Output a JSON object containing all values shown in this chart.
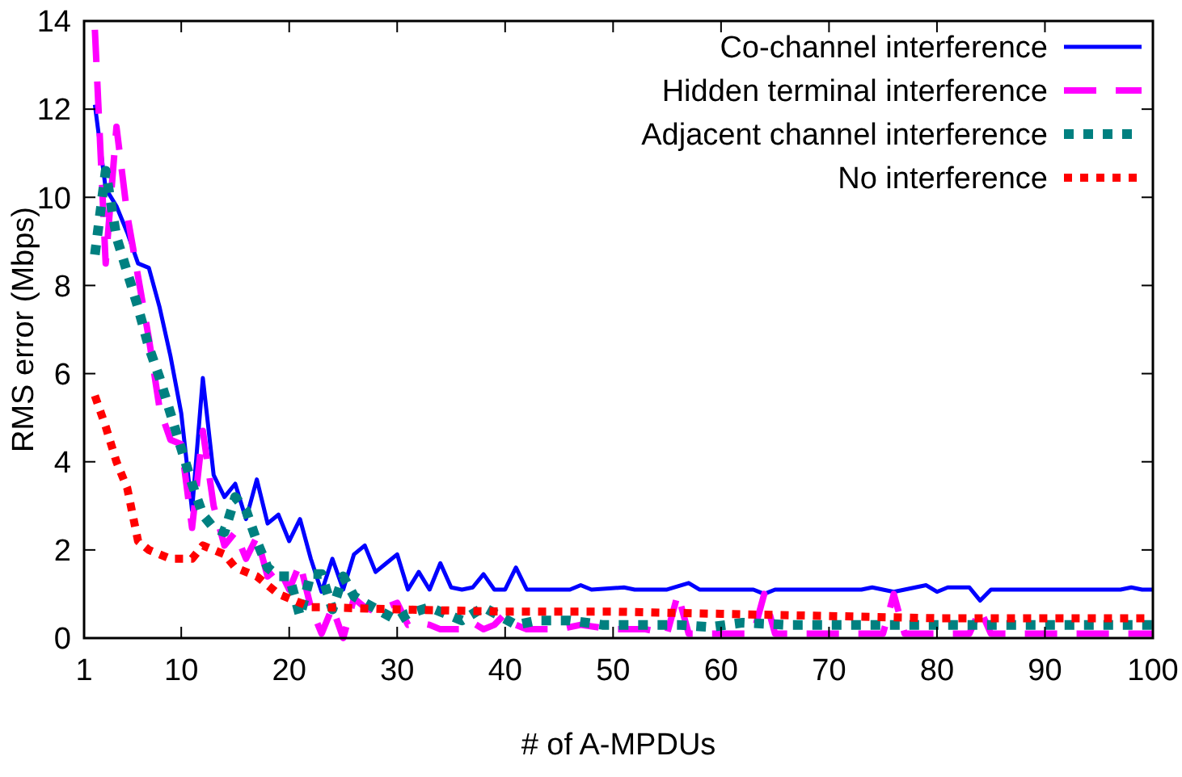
{
  "chart_data": {
    "type": "line",
    "xlabel": "# of A-MPDUs",
    "ylabel": "RMS error (Mbps)",
    "xlim": [
      1,
      100
    ],
    "ylim": [
      0,
      14
    ],
    "xticks": [
      1,
      10,
      20,
      30,
      40,
      50,
      60,
      70,
      80,
      90,
      100
    ],
    "yticks": [
      0,
      2,
      4,
      6,
      8,
      10,
      12,
      14
    ],
    "grid": false,
    "legend": "top right",
    "series": [
      {
        "name": "Co-channel interference",
        "color": "#0000ff",
        "line_style": "solid",
        "x": [
          2,
          3,
          4,
          5,
          6,
          7,
          8,
          9,
          10,
          11,
          12,
          13,
          14,
          15,
          16,
          17,
          18,
          19,
          20,
          21,
          22,
          23,
          24,
          25,
          26,
          27,
          28,
          29,
          30,
          31,
          32,
          33,
          34,
          35,
          36,
          37,
          38,
          39,
          40,
          41,
          42,
          46,
          47,
          48,
          51,
          52,
          55,
          57,
          58,
          63,
          64,
          65,
          73,
          74,
          75,
          76,
          77,
          79,
          80,
          81,
          83,
          84,
          85,
          97,
          98,
          99,
          100
        ],
        "values": [
          12.1,
          10.2,
          9.8,
          9.2,
          8.5,
          8.4,
          7.5,
          6.4,
          5.1,
          2.9,
          5.9,
          3.7,
          3.2,
          3.5,
          2.7,
          3.6,
          2.6,
          2.8,
          2.2,
          2.7,
          1.8,
          1.05,
          1.8,
          1.1,
          1.9,
          2.1,
          1.5,
          1.7,
          1.9,
          1.1,
          1.5,
          1.1,
          1.7,
          1.15,
          1.1,
          1.15,
          1.45,
          1.1,
          1.1,
          1.6,
          1.1,
          1.1,
          1.2,
          1.1,
          1.15,
          1.1,
          1.1,
          1.25,
          1.1,
          1.1,
          1.0,
          1.1,
          1.1,
          1.15,
          1.1,
          1.05,
          1.1,
          1.2,
          1.05,
          1.15,
          1.15,
          0.85,
          1.1,
          1.1,
          1.15,
          1.1,
          1.1
        ]
      },
      {
        "name": "Hidden terminal interference",
        "color": "#ff00ff",
        "line_style": "dashed",
        "x": [
          2,
          3,
          4,
          5,
          6,
          7,
          8,
          9,
          10,
          11,
          12,
          13,
          14,
          15,
          16,
          17,
          18,
          19,
          20,
          21,
          22,
          23,
          24,
          25,
          26,
          27,
          28,
          29,
          30,
          31,
          32,
          33,
          34,
          35,
          36,
          37,
          38,
          39,
          40,
          41,
          42,
          43,
          45,
          47,
          50,
          53,
          55,
          56,
          57,
          63,
          64,
          65,
          75,
          76,
          77,
          83,
          84,
          85,
          100
        ],
        "values": [
          13.8,
          8.5,
          11.6,
          9.6,
          8.2,
          6.8,
          5.2,
          4.5,
          4.4,
          2.5,
          4.7,
          3.0,
          2.1,
          2.4,
          1.8,
          2.3,
          1.4,
          1.6,
          1.1,
          1.7,
          0.7,
          0.1,
          0.7,
          0.0,
          0.9,
          0.7,
          0.6,
          0.7,
          0.8,
          0.3,
          0.35,
          0.3,
          0.2,
          0.2,
          0.2,
          0.35,
          0.2,
          0.3,
          0.55,
          0.3,
          0.2,
          0.2,
          0.2,
          0.3,
          0.2,
          0.2,
          0.1,
          1.0,
          0.1,
          0.1,
          1.0,
          0.1,
          0.1,
          1.0,
          0.1,
          0.1,
          0.65,
          0.1,
          0.1
        ]
      },
      {
        "name": "Adjacent channel interference",
        "color": "#008080",
        "line_style": "dotted",
        "x": [
          2,
          3,
          4,
          5,
          6,
          7,
          8,
          9,
          10,
          11,
          12,
          13,
          14,
          15,
          16,
          17,
          18,
          19,
          20,
          21,
          22,
          23,
          24,
          25,
          26,
          27,
          30,
          31,
          33,
          36,
          38,
          41,
          43,
          46,
          49,
          52,
          56,
          59,
          62,
          66,
          70,
          75,
          80,
          85,
          90,
          95,
          100
        ],
        "values": [
          8.7,
          10.6,
          9.1,
          8.3,
          7.5,
          6.6,
          5.9,
          5.1,
          4.3,
          3.5,
          2.8,
          2.5,
          2.4,
          3.2,
          2.9,
          2.2,
          1.6,
          1.4,
          1.4,
          0.5,
          1.45,
          1.45,
          0.65,
          1.4,
          0.95,
          0.8,
          0.4,
          0.55,
          0.7,
          0.4,
          0.7,
          0.3,
          0.4,
          0.4,
          0.3,
          0.3,
          0.3,
          0.25,
          0.35,
          0.3,
          0.3,
          0.3,
          0.3,
          0.3,
          0.3,
          0.3,
          0.3
        ]
      },
      {
        "name": "No interference",
        "color": "#ff0000",
        "line_style": "dotted",
        "x": [
          2,
          3,
          4,
          5,
          6,
          7,
          9,
          11,
          12,
          14,
          15,
          17,
          18,
          19,
          21,
          22,
          23,
          30,
          40,
          50,
          60,
          70,
          80,
          90,
          100
        ],
        "values": [
          5.5,
          4.8,
          4.0,
          3.4,
          2.2,
          2.0,
          1.8,
          1.8,
          2.1,
          1.9,
          1.6,
          1.4,
          1.2,
          1.0,
          0.8,
          0.7,
          0.7,
          0.65,
          0.6,
          0.6,
          0.55,
          0.5,
          0.45,
          0.45,
          0.45
        ]
      }
    ]
  }
}
